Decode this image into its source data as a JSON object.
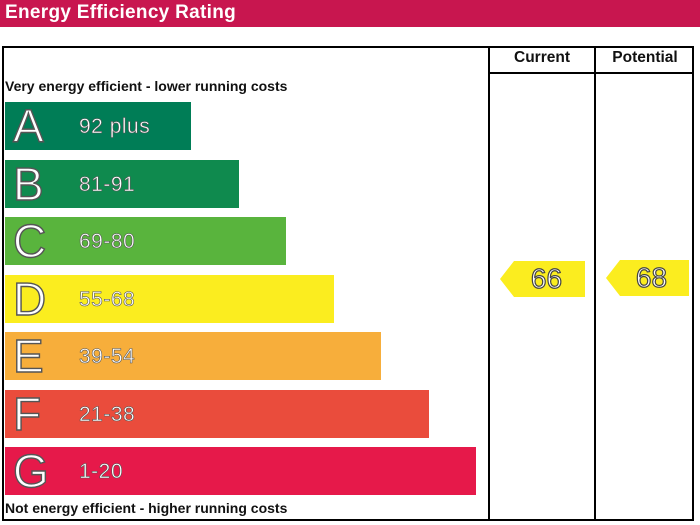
{
  "header": {
    "title": "Energy Efficiency Rating",
    "color": "#c8164f"
  },
  "columns": {
    "current": "Current",
    "potential": "Potential"
  },
  "captions": {
    "top": "Very energy efficient - lower running costs",
    "bottom": "Not energy efficient - higher running costs"
  },
  "chart_data": {
    "type": "bar",
    "categories": [
      "A",
      "B",
      "C",
      "D",
      "E",
      "F",
      "G"
    ],
    "ranges": [
      "92 plus",
      "81-91",
      "69-80",
      "55-68",
      "39-54",
      "21-38",
      "1-20"
    ],
    "values": [
      1,
      2,
      3,
      4,
      5,
      6,
      7
    ],
    "colors": [
      "#007d56",
      "#0f8a4e",
      "#59b43d",
      "#fbed1f",
      "#f7ae3b",
      "#ea4c3c",
      "#e6194a"
    ],
    "current": {
      "value": "66",
      "band": "D"
    },
    "potential": {
      "value": "68",
      "band": "D"
    }
  }
}
